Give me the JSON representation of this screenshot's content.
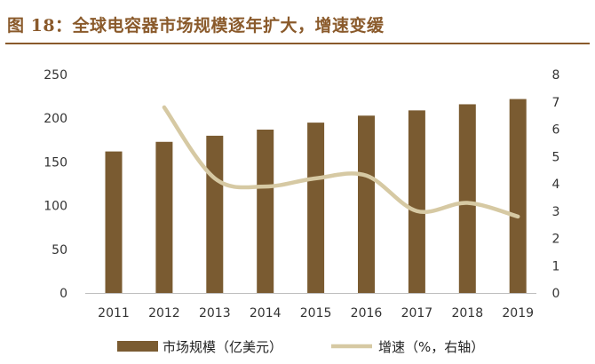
{
  "title": "图 18：全球电容器市场规模逐年扩大，增速变缓",
  "colors": {
    "title": "#8a5a2b",
    "bar": "#7a5b31",
    "line": "#d6c9a3",
    "rule": "#8a5a2b"
  },
  "chart_data": {
    "type": "bar",
    "categories": [
      "2011",
      "2012",
      "2013",
      "2014",
      "2015",
      "2016",
      "2017",
      "2018",
      "2019"
    ],
    "series": [
      {
        "name": "市场规模（亿美元）",
        "type": "bar",
        "axis": "left",
        "values": [
          162,
          173,
          180,
          187,
          195,
          203,
          209,
          216,
          222
        ]
      },
      {
        "name": "增速（%，右轴）",
        "type": "line",
        "axis": "right",
        "smooth": true,
        "values": [
          null,
          6.8,
          4.2,
          3.9,
          4.2,
          4.3,
          3.0,
          3.3,
          2.8
        ]
      }
    ],
    "ylim_left": [
      0,
      250
    ],
    "yticks_left": [
      "0",
      "50",
      "100",
      "150",
      "200",
      "250"
    ],
    "ylim_right": [
      0,
      8
    ],
    "yticks_right": [
      "0",
      "1",
      "2",
      "3",
      "4",
      "5",
      "6",
      "7",
      "8"
    ],
    "grid": false,
    "legend_position": "bottom"
  }
}
